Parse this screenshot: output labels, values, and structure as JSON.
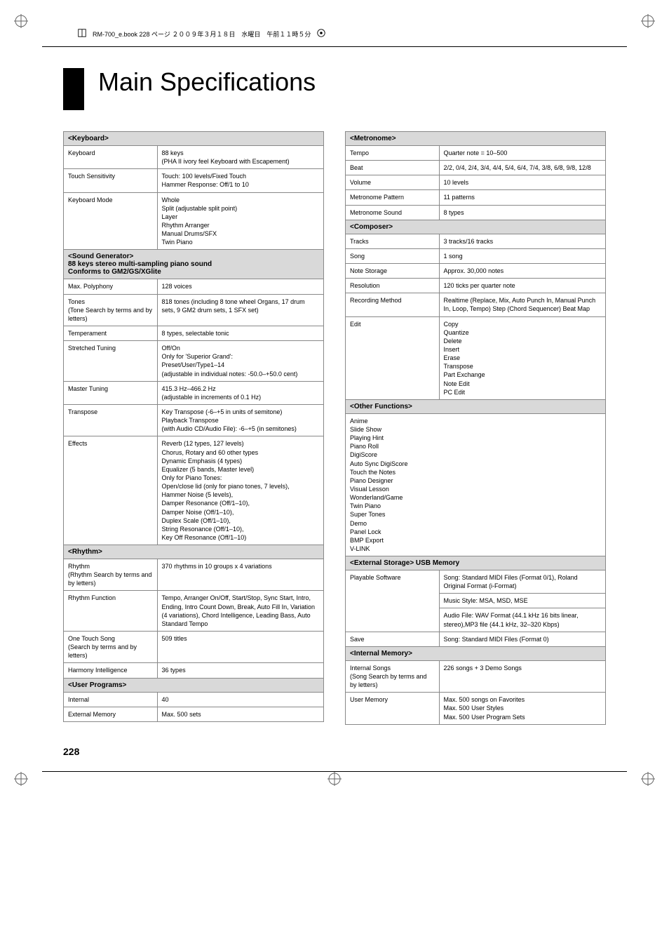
{
  "header_note": "RM-700_e.book  228 ページ  ２００９年３月１８日　水曜日　午前１１時５分",
  "title": "Main Specifications",
  "page_number": "228",
  "left_col": [
    {
      "type": "section",
      "text": "<Keyboard>"
    },
    {
      "type": "row",
      "label": "Keyboard",
      "value": "88 keys\n(PHA II ivory feel Keyboard with Escapement)"
    },
    {
      "type": "row",
      "label": "Touch Sensitivity",
      "value": "Touch: 100 levels/Fixed Touch\nHammer Response: Off/1 to 10"
    },
    {
      "type": "row",
      "label": "Keyboard Mode",
      "value": "Whole\nSplit (adjustable split point)\nLayer\nRhythm Arranger\nManual Drums/SFX\nTwin Piano"
    },
    {
      "type": "section",
      "text": "<Sound Generator>\n88 keys stereo multi-sampling piano sound\nConforms to GM2/GS/XGlite"
    },
    {
      "type": "row",
      "label": "Max. Polyphony",
      "value": "128 voices"
    },
    {
      "type": "row",
      "label": "Tones\n(Tone Search by terms and by letters)",
      "value": "818 tones (including 8 tone wheel Organs, 17 drum sets, 9 GM2 drum sets, 1 SFX set)"
    },
    {
      "type": "row",
      "label": "Temperament",
      "value": "8 types, selectable tonic"
    },
    {
      "type": "row",
      "label": "Stretched Tuning",
      "value": "Off/On\nOnly for 'Superior Grand':\nPreset/User/Type1–14\n(adjustable in individual notes: -50.0–+50.0 cent)"
    },
    {
      "type": "row",
      "label": "Master Tuning",
      "value": "415.3 Hz–466.2 Hz\n(adjustable in increments of 0.1 Hz)"
    },
    {
      "type": "row",
      "label": "Transpose",
      "value": "Key Transpose (-6–+5 in units of semitone)\nPlayback Transpose\n(with Audio CD/Audio File): -6–+5 (in semitones)"
    },
    {
      "type": "row",
      "label": "Effects",
      "value": "Reverb (12 types, 127 levels)\nChorus, Rotary and 60 other types\nDynamic Emphasis (4 types)\nEqualizer (5 bands, Master level)\nOnly for Piano Tones:\nOpen/close lid (only for piano tones, 7 levels),\nHammer Noise (5 levels),\nDamper Resonance (Off/1–10),\nDamper Noise (Off/1–10),\nDuplex Scale (Off/1–10),\nString Resonance (Off/1–10),\nKey Off Resonance (Off/1–10)"
    },
    {
      "type": "section",
      "text": "<Rhythm>"
    },
    {
      "type": "row",
      "label": "Rhythm\n(Rhythm Search by terms and by letters)",
      "value": "370 rhythms in 10 groups x 4 variations"
    },
    {
      "type": "row",
      "label": "Rhythm Function",
      "value": "Tempo, Arranger On/Off, Start/Stop, Sync Start, Intro, Ending, Intro Count Down, Break, Auto Fill In, Variation (4 variations), Chord Intelligence, Leading Bass, Auto Standard Tempo"
    },
    {
      "type": "row",
      "label": "One Touch Song\n(Search by terms and by letters)",
      "value": "509 titles"
    },
    {
      "type": "row",
      "label": "Harmony Intelligence",
      "value": "36 types"
    },
    {
      "type": "section",
      "text": "<User Programs>"
    },
    {
      "type": "row",
      "label": "Internal",
      "value": "40"
    },
    {
      "type": "row",
      "label": "External Memory",
      "value": "Max. 500 sets"
    }
  ],
  "right_col": [
    {
      "type": "section",
      "text": "<Metronome>"
    },
    {
      "type": "row",
      "label": "Tempo",
      "value": "Quarter note = 10–500"
    },
    {
      "type": "row",
      "label": "Beat",
      "value": "2/2, 0/4, 2/4, 3/4, 4/4, 5/4, 6/4, 7/4, 3/8, 6/8, 9/8, 12/8"
    },
    {
      "type": "row",
      "label": "Volume",
      "value": "10 levels"
    },
    {
      "type": "row",
      "label": "Metronome Pattern",
      "value": "11 patterns"
    },
    {
      "type": "row",
      "label": "Metronome Sound",
      "value": "8 types"
    },
    {
      "type": "section",
      "text": "<Composer>"
    },
    {
      "type": "row",
      "label": "Tracks",
      "value": "3 tracks/16 tracks"
    },
    {
      "type": "row",
      "label": "Song",
      "value": "1 song"
    },
    {
      "type": "row",
      "label": "Note Storage",
      "value": "Approx. 30,000 notes"
    },
    {
      "type": "row",
      "label": "Resolution",
      "value": "120 ticks per quarter note"
    },
    {
      "type": "row",
      "label": "Recording Method",
      "value": "Realtime (Replace, Mix, Auto Punch In, Manual Punch In, Loop, Tempo) Step (Chord Sequencer) Beat Map"
    },
    {
      "type": "row",
      "label": "Edit",
      "value": "Copy\nQuantize\nDelete\nInsert\nErase\nTranspose\nPart Exchange\nNote Edit\nPC Edit"
    },
    {
      "type": "section",
      "text": "<Other Functions>"
    },
    {
      "type": "single",
      "value": "Anime\nSlide Show\nPlaying Hint\nPiano Roll\nDigiScore\nAuto Sync DigiScore\nTouch the Notes\nPiano Designer\nVisual Lesson\nWonderland/Game\nTwin Piano\nSuper Tones\nDemo\nPanel Lock\nBMP Export\nV-LINK"
    },
    {
      "type": "section",
      "text": "<External Storage> USB Memory"
    },
    {
      "type": "row",
      "label": "Playable Software",
      "value": "Song: Standard MIDI Files (Format 0/1), Roland Original Format (i-Format)",
      "rowspan": 3
    },
    {
      "type": "subrow",
      "value": "Music Style: MSA, MSD, MSE"
    },
    {
      "type": "subrow",
      "value": "Audio File: WAV Format (44.1 kHz 16 bits linear, stereo),MP3 file (44.1 kHz, 32–320 Kbps)"
    },
    {
      "type": "row",
      "label": "Save",
      "value": "Song: Standard MIDI Files (Format 0)"
    },
    {
      "type": "section",
      "text": "<Internal Memory>"
    },
    {
      "type": "row",
      "label": "Internal Songs\n(Song Search by terms and by letters)",
      "value": "226 songs + 3 Demo Songs"
    },
    {
      "type": "row",
      "label": "User Memory",
      "value": "Max. 500 songs on Favorites\nMax. 500 User Styles\nMax. 500 User Program Sets"
    }
  ],
  "colors": {
    "section_bg": "#d9d9d9",
    "border": "#888888"
  }
}
